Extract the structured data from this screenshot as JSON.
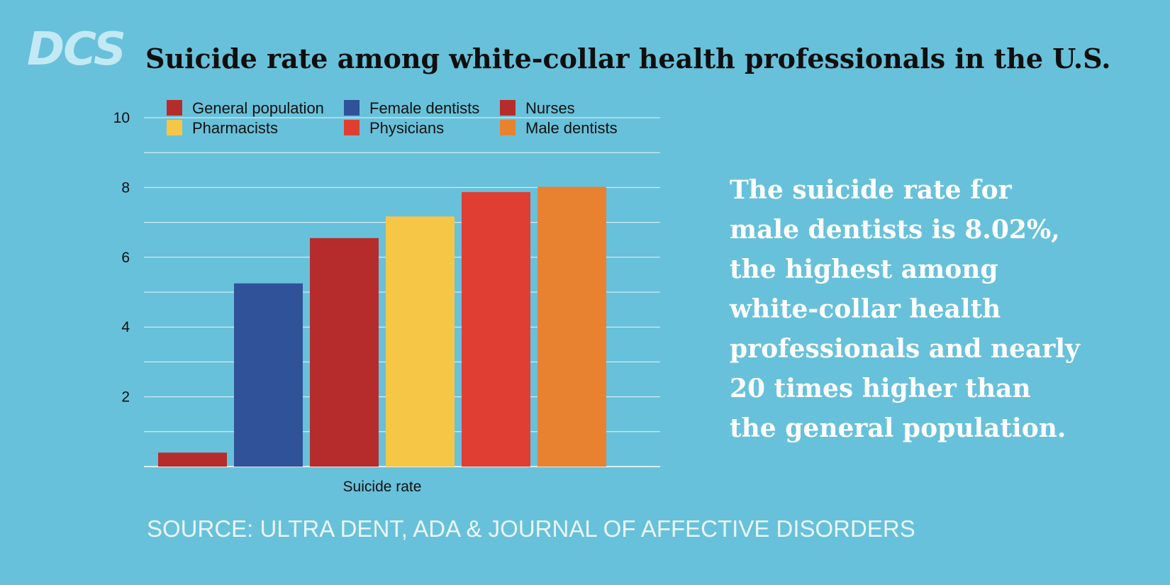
{
  "logo_text": "DCS",
  "title": "Suicide rate among white-collar health professionals in the U.S.",
  "callout": "The suicide rate for male dentists is 8.02%, the highest among white-collar health professionals and nearly 20 times higher than the general population.",
  "source": "SOURCE: ULTRA DENT, ADA & JOURNAL OF AFFECTIVE DISORDERS",
  "colors": {
    "background": "#68c1da",
    "gridline": "#ffffff"
  },
  "chart_data": {
    "type": "bar",
    "title": "Suicide rate among white-collar health professionals in the U.S.",
    "xlabel": "Suicide rate",
    "ylabel": "",
    "categories": [
      "Suicide rate"
    ],
    "ylim": [
      0,
      10
    ],
    "yticks": [
      2,
      4,
      6,
      8,
      10
    ],
    "grid": true,
    "legend_position": "top",
    "series": [
      {
        "name": "General population",
        "values": [
          0.4
        ],
        "color": "#b62c2c"
      },
      {
        "name": "Female dentists",
        "values": [
          5.25
        ],
        "color": "#2f5299"
      },
      {
        "name": "Nurses",
        "values": [
          6.55
        ],
        "color": "#b62c2c"
      },
      {
        "name": "Pharmacists",
        "values": [
          7.17
        ],
        "color": "#f6c646"
      },
      {
        "name": "Physicians",
        "values": [
          7.87
        ],
        "color": "#e03e33"
      },
      {
        "name": "Male dentists",
        "values": [
          8.02
        ],
        "color": "#e88231"
      }
    ]
  }
}
